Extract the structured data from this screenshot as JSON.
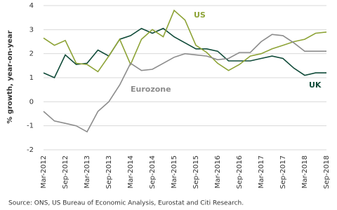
{
  "chart_data": {
    "type": "line",
    "y_label": "% growth, year-on-year",
    "source": "Source: ONS, US Bureau of Economic Analysis, Eurostat and Citi Research.",
    "categories": [
      "Mar-2012",
      null,
      "Sep-2012",
      null,
      "Mar-2013",
      null,
      "Sep-2013",
      null,
      "Mar-2014",
      null,
      "Sep-2014",
      null,
      "Mar-2015",
      null,
      "Sep-2015",
      null,
      "Mar-2016",
      null,
      "Sep-2016",
      null,
      "Mar-2017",
      null,
      "Sep-2017",
      null,
      "Mar-2018",
      null,
      "Sep-2018"
    ],
    "series": [
      {
        "name": "UK",
        "color": "#0f4a38",
        "values": [
          1.2,
          1.0,
          1.95,
          1.55,
          1.6,
          2.15,
          1.9,
          2.6,
          2.75,
          3.05,
          2.85,
          3.05,
          2.7,
          2.45,
          2.2,
          2.2,
          2.1,
          1.7,
          1.7,
          1.7,
          1.8,
          1.9,
          1.8,
          1.4,
          1.1,
          1.2,
          1.2
        ]
      },
      {
        "name": "US",
        "color": "#8da336",
        "values": [
          2.65,
          2.35,
          2.55,
          1.6,
          1.55,
          1.25,
          1.9,
          2.6,
          1.55,
          2.6,
          3.0,
          2.7,
          3.8,
          3.4,
          2.35,
          2.05,
          1.6,
          1.3,
          1.55,
          1.9,
          2.0,
          2.2,
          2.35,
          2.5,
          2.6,
          2.85,
          2.9
        ]
      },
      {
        "name": "Eurozone",
        "color": "#8c8c8c",
        "values": [
          -0.4,
          -0.8,
          -0.9,
          -1.0,
          -1.25,
          -0.4,
          0.0,
          0.7,
          1.6,
          1.3,
          1.35,
          1.6,
          1.85,
          2.0,
          1.95,
          1.9,
          1.75,
          1.8,
          2.05,
          2.05,
          2.5,
          2.8,
          2.75,
          2.45,
          2.1,
          2.1,
          2.1
        ]
      }
    ],
    "ylim": [
      -2,
      4
    ],
    "yticks": [
      -2,
      -1,
      0,
      1,
      2,
      3,
      4
    ],
    "grid": true
  }
}
